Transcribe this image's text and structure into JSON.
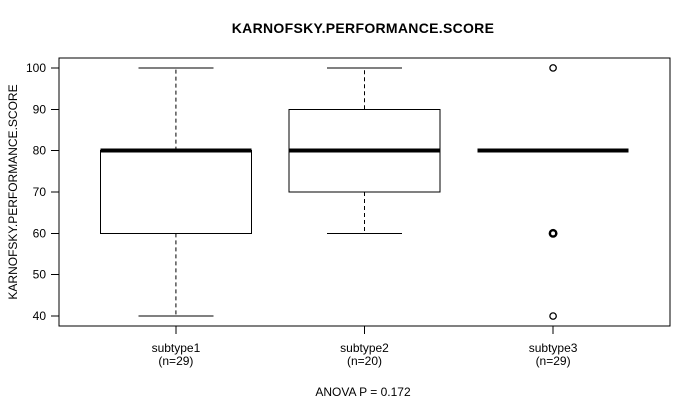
{
  "title": "KARNOFSKY.PERFORMANCE.SCORE",
  "colors": {
    "line": "#000000",
    "background": "#ffffff"
  },
  "chart_data": {
    "type": "boxplot",
    "title": "KARNOFSKY.PERFORMANCE.SCORE",
    "ylabel": "KARNOFSKY.PERFORMANCE.SCORE",
    "xlabel": "",
    "ylim": [
      40,
      100
    ],
    "yticks": [
      40,
      50,
      60,
      70,
      80,
      90,
      100
    ],
    "grid": false,
    "legend": "none",
    "annotation": "ANOVA P = 0.172",
    "groups": [
      {
        "label": "subtype1",
        "sublabel": "(n=29)",
        "n": 29,
        "whisker_low": 40,
        "q1": 60,
        "median": 80,
        "q3": 80,
        "whisker_high": 100,
        "outliers": [],
        "emphasized_outliers": []
      },
      {
        "label": "subtype2",
        "sublabel": "(n=20)",
        "n": 20,
        "whisker_low": 60,
        "q1": 70,
        "median": 80,
        "q3": 90,
        "whisker_high": 100,
        "outliers": [],
        "emphasized_outliers": []
      },
      {
        "label": "subtype3",
        "sublabel": "(n=29)",
        "n": 29,
        "whisker_low": 80,
        "q1": 80,
        "median": 80,
        "q3": 80,
        "whisker_high": 80,
        "outliers": [
          100,
          60,
          40
        ],
        "emphasized_outliers": [
          60
        ]
      }
    ]
  }
}
